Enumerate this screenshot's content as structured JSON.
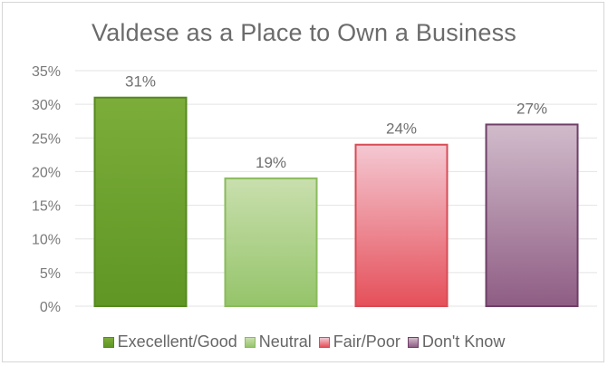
{
  "chart_data": {
    "type": "bar",
    "title": "Valdese as a Place to Own a Business",
    "categories": [
      "Execellent/Good",
      "Neutral",
      "Fair/Poor",
      "Don't Know"
    ],
    "values": [
      31,
      19,
      24,
      27
    ],
    "data_labels": [
      "31%",
      "19%",
      "24%",
      "27%"
    ],
    "ylim": [
      0,
      35
    ],
    "y_ticks": [
      "0%",
      "5%",
      "10%",
      "15%",
      "20%",
      "25%",
      "30%",
      "35%"
    ],
    "grid": true,
    "legend_position": "bottom",
    "colors": [
      {
        "top": "#7cad3a",
        "bottom": "#5f9624",
        "border": "#55891e"
      },
      {
        "top": "#c9dfae",
        "bottom": "#95c46a",
        "border": "#8abb5c"
      },
      {
        "top": "#f4c8d2",
        "bottom": "#e5505a",
        "border": "#d84b55"
      },
      {
        "top": "#d1bccb",
        "bottom": "#8f5d84",
        "border": "#6f3f68"
      }
    ]
  }
}
